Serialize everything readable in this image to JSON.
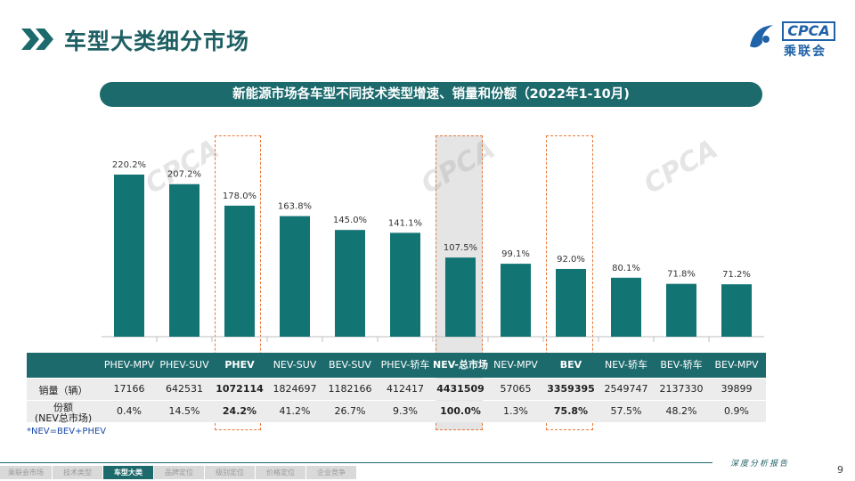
{
  "title": "车型大类细分市场",
  "logo": {
    "brand": "CPCA",
    "name_cn": "乘联会"
  },
  "watermark_text": "CPCA",
  "chart_data": {
    "type": "bar",
    "title": "新能源市场各车型不同技术类型增速、销量和份额（2022年1-10月)",
    "categories": [
      "PHEV-MPV",
      "PHEV-SUV",
      "PHEV",
      "NEV-SUV",
      "BEV-SUV",
      "PHEV-轿车",
      "NEV-总市场",
      "NEV-MPV",
      "BEV",
      "NEV-轿车",
      "BEV-轿车",
      "BEV-MPV"
    ],
    "values": [
      220.2,
      207.2,
      178.0,
      163.8,
      145.0,
      141.1,
      107.5,
      99.1,
      92.0,
      80.1,
      71.8,
      71.2
    ],
    "value_labels": [
      "220.2%",
      "207.2%",
      "178.0%",
      "163.8%",
      "145.0%",
      "141.1%",
      "107.5%",
      "99.1%",
      "92.0%",
      "80.1%",
      "71.8%",
      "71.2%"
    ],
    "ylim": [
      0,
      240
    ],
    "bar_color": "#137474",
    "highlighted": [
      "PHEV",
      "NEV-总市场",
      "BEV"
    ],
    "highlight_color": "#e8793c"
  },
  "table": {
    "row_labels": [
      "销量（辆）",
      "份额",
      "(NEV总市场)"
    ],
    "sales": [
      "17166",
      "642531",
      "1072114",
      "1824697",
      "1182166",
      "412417",
      "4431509",
      "57065",
      "3359395",
      "2549747",
      "2137330",
      "39899"
    ],
    "share": [
      "0.4%",
      "14.5%",
      "24.2%",
      "41.2%",
      "26.7%",
      "9.3%",
      "100.0%",
      "1.3%",
      "75.8%",
      "57.5%",
      "48.2%",
      "0.9%"
    ]
  },
  "footnote": "*NEV=BEV+PHEV",
  "tagline": "深度分析报告",
  "page_number": "9",
  "nav": [
    "乘联会市场",
    "技术类型",
    "车型大类",
    "品牌定位",
    "级别定位",
    "价格定位",
    "企业竞争"
  ],
  "nav_active": 2
}
